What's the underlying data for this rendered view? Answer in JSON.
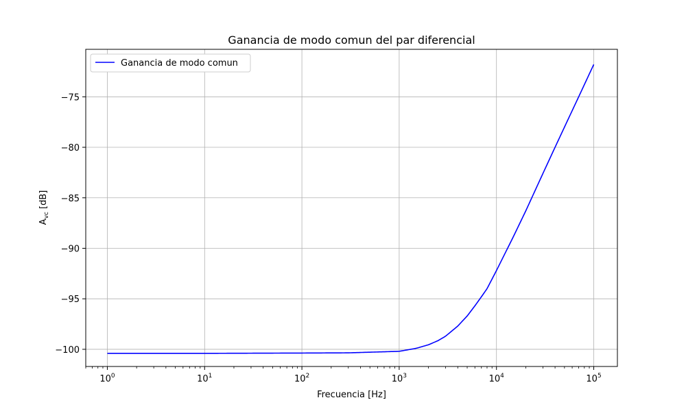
{
  "chart_data": {
    "type": "line",
    "title": "Ganancia de modo comun del par diferencial",
    "xlabel": "Frecuencia [Hz]",
    "ylabel_main": "A",
    "ylabel_sub": "vc",
    "ylabel_unit": " [dB]",
    "x_scale": "log",
    "xlim": [
      0.6,
      175000
    ],
    "ylim": [
      -101.7,
      -70.3
    ],
    "x_ticks": [
      {
        "value": 1,
        "base": "10",
        "exp": "0"
      },
      {
        "value": 10,
        "base": "10",
        "exp": "1"
      },
      {
        "value": 100,
        "base": "10",
        "exp": "2"
      },
      {
        "value": 1000,
        "base": "10",
        "exp": "3"
      },
      {
        "value": 10000,
        "base": "10",
        "exp": "4"
      },
      {
        "value": 100000,
        "base": "10",
        "exp": "5"
      }
    ],
    "y_ticks": [
      {
        "value": -75,
        "label": "−75"
      },
      {
        "value": -80,
        "label": "−80"
      },
      {
        "value": -85,
        "label": "−85"
      },
      {
        "value": -90,
        "label": "−90"
      },
      {
        "value": -95,
        "label": "−95"
      },
      {
        "value": -100,
        "label": "−100"
      }
    ],
    "grid": true,
    "legend_position": "top-left",
    "series": [
      {
        "name": "Ganancia de modo comun",
        "color": "#0000ff",
        "x": [
          1,
          10,
          100,
          300,
          1000,
          1500,
          2000,
          2500,
          3000,
          4000,
          5000,
          6000,
          7000,
          8000,
          10000,
          15000,
          20000,
          30000,
          40000,
          50000,
          70000,
          100000
        ],
        "y": [
          -100.4,
          -100.4,
          -100.37,
          -100.35,
          -100.2,
          -99.9,
          -99.55,
          -99.15,
          -98.7,
          -97.7,
          -96.7,
          -95.7,
          -94.8,
          -94.0,
          -92.2,
          -88.8,
          -86.3,
          -82.6,
          -80.0,
          -78.0,
          -75.0,
          -71.8
        ]
      }
    ]
  }
}
